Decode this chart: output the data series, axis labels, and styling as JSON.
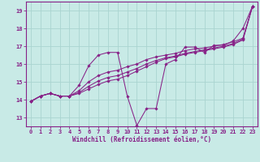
{
  "xlabel": "Windchill (Refroidissement éolien,°C)",
  "xlim": [
    -0.5,
    23.5
  ],
  "ylim": [
    12.5,
    19.5
  ],
  "xticks": [
    0,
    1,
    2,
    3,
    4,
    5,
    6,
    7,
    8,
    9,
    10,
    11,
    12,
    13,
    14,
    15,
    16,
    17,
    18,
    19,
    20,
    21,
    22,
    23
  ],
  "yticks": [
    13,
    14,
    15,
    16,
    17,
    18,
    19
  ],
  "bg_color": "#c8eae6",
  "grid_color": "#aad4d0",
  "line_color": "#882288",
  "lines": [
    {
      "x": [
        0,
        1,
        2,
        3,
        4,
        5,
        6,
        7,
        8,
        9,
        10,
        11,
        12,
        13,
        14,
        15,
        16,
        17,
        18,
        19,
        20,
        21,
        22,
        23
      ],
      "y": [
        13.9,
        14.2,
        14.35,
        14.2,
        14.2,
        14.8,
        15.9,
        16.5,
        16.65,
        16.65,
        14.2,
        12.55,
        13.5,
        13.5,
        16.0,
        16.25,
        16.95,
        16.95,
        16.65,
        17.05,
        17.05,
        17.3,
        18.0,
        19.25
      ]
    },
    {
      "x": [
        0,
        1,
        2,
        3,
        4,
        5,
        6,
        7,
        8,
        9,
        10,
        11,
        12,
        13,
        14,
        15,
        16,
        17,
        18,
        19,
        20,
        21,
        22,
        23
      ],
      "y": [
        13.9,
        14.2,
        14.35,
        14.2,
        14.2,
        14.5,
        15.0,
        15.35,
        15.55,
        15.65,
        15.85,
        16.0,
        16.25,
        16.4,
        16.5,
        16.6,
        16.75,
        16.85,
        16.9,
        17.0,
        17.1,
        17.25,
        17.45,
        19.25
      ]
    },
    {
      "x": [
        0,
        1,
        2,
        3,
        4,
        5,
        6,
        7,
        8,
        9,
        10,
        11,
        12,
        13,
        14,
        15,
        16,
        17,
        18,
        19,
        20,
        21,
        22,
        23
      ],
      "y": [
        13.9,
        14.2,
        14.35,
        14.2,
        14.2,
        14.4,
        14.75,
        15.05,
        15.25,
        15.35,
        15.55,
        15.75,
        16.0,
        16.2,
        16.35,
        16.45,
        16.6,
        16.7,
        16.8,
        16.9,
        17.0,
        17.15,
        17.4,
        19.25
      ]
    },
    {
      "x": [
        0,
        1,
        2,
        3,
        4,
        5,
        6,
        7,
        8,
        9,
        10,
        11,
        12,
        13,
        14,
        15,
        16,
        17,
        18,
        19,
        20,
        21,
        22,
        23
      ],
      "y": [
        13.9,
        14.2,
        14.35,
        14.2,
        14.2,
        14.35,
        14.6,
        14.85,
        15.05,
        15.15,
        15.35,
        15.6,
        15.85,
        16.1,
        16.3,
        16.4,
        16.55,
        16.65,
        16.75,
        16.85,
        16.95,
        17.1,
        17.35,
        19.25
      ]
    }
  ]
}
